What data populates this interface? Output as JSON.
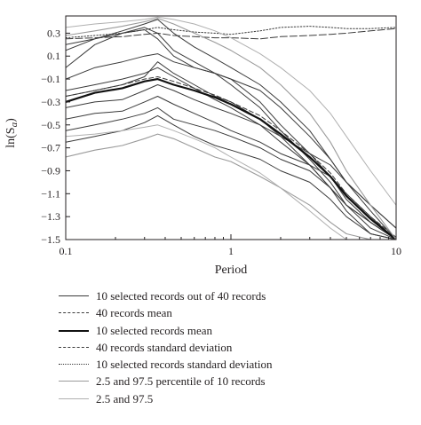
{
  "chart_data": {
    "type": "line",
    "xscale": "log",
    "xlim": [
      0.1,
      10
    ],
    "ylim": [
      -1.5,
      0.45
    ],
    "xticks": [
      0.1,
      1,
      10
    ],
    "xtick_labels": [
      "0.1",
      "1",
      "10"
    ],
    "yticks": [
      0.3,
      0.1,
      -0.1,
      -0.3,
      -0.5,
      -0.7,
      -0.9,
      -1.1,
      -1.3,
      -1.5
    ],
    "ytick_labels": [
      "0.3",
      "0.1",
      "−0.1",
      "−0.3",
      "−0.5",
      "−0.7",
      "−0.9",
      "−1.1",
      "−1.3",
      "−1.5"
    ],
    "xlabel": "Period",
    "ylabel_main": "ln(S",
    "ylabel_sub": "a",
    "ylabel_close": ")",
    "grid": false,
    "legend_position": "below",
    "colors": {
      "records": "#3a3a3a",
      "mean": "#111111",
      "gray": "#9a9a9a",
      "light": "#b0b0b0"
    },
    "legend": [
      {
        "label": "10 selected records out of 40 records",
        "style": "thin-solid"
      },
      {
        "label": "40 records mean",
        "style": "dashed"
      },
      {
        "label": "10 selected records mean",
        "style": "thick-solid"
      },
      {
        "label": "40 records standard deviation",
        "style": "long-dashed"
      },
      {
        "label": "10 selected records standard deviation",
        "style": "dotted"
      },
      {
        "label": "2.5 and 97.5 percentile of 10 records",
        "style": "gray-solid"
      },
      {
        "label": "2.5 and 97.5",
        "style": "light-solid"
      }
    ],
    "series": [
      {
        "style": "thin-solid",
        "x": [
          0.1,
          0.15,
          0.22,
          0.3,
          0.36,
          0.45,
          0.6,
          0.8,
          1,
          1.5,
          2,
          3,
          4,
          5,
          7,
          10
        ],
        "y": [
          0.15,
          0.25,
          0.32,
          0.38,
          0.42,
          0.3,
          0.18,
          0.08,
          0.0,
          -0.15,
          -0.3,
          -0.55,
          -0.8,
          -1.0,
          -1.25,
          -1.5
        ]
      },
      {
        "style": "thin-solid",
        "x": [
          0.1,
          0.15,
          0.22,
          0.3,
          0.36,
          0.45,
          0.6,
          0.8,
          1,
          1.5,
          2,
          3,
          4,
          5,
          7,
          10
        ],
        "y": [
          0.0,
          0.2,
          0.3,
          0.33,
          0.25,
          0.1,
          0.0,
          -0.05,
          -0.1,
          -0.3,
          -0.5,
          -0.75,
          -0.95,
          -1.15,
          -1.35,
          -1.5
        ]
      },
      {
        "style": "thin-solid",
        "x": [
          0.1,
          0.15,
          0.22,
          0.3,
          0.36,
          0.45,
          0.6,
          0.8,
          1,
          1.5,
          2,
          3,
          4,
          5,
          7,
          10
        ],
        "y": [
          -0.1,
          0.0,
          0.05,
          0.1,
          0.12,
          0.05,
          0.0,
          -0.05,
          -0.1,
          -0.2,
          -0.35,
          -0.6,
          -0.8,
          -1.0,
          -1.2,
          -1.4
        ]
      },
      {
        "style": "thin-solid",
        "x": [
          0.1,
          0.15,
          0.22,
          0.3,
          0.36,
          0.45,
          0.6,
          0.8,
          1,
          1.5,
          2,
          3,
          4,
          5,
          7,
          10
        ],
        "y": [
          -0.25,
          -0.2,
          -0.15,
          -0.08,
          0.05,
          -0.05,
          -0.15,
          -0.25,
          -0.3,
          -0.45,
          -0.6,
          -0.85,
          -1.05,
          -1.2,
          -1.35,
          -1.5
        ]
      },
      {
        "style": "thin-solid",
        "x": [
          0.1,
          0.15,
          0.22,
          0.3,
          0.36,
          0.45,
          0.6,
          0.8,
          1,
          1.5,
          2,
          3,
          4,
          5,
          7,
          10
        ],
        "y": [
          -0.35,
          -0.3,
          -0.28,
          -0.2,
          -0.15,
          -0.2,
          -0.28,
          -0.35,
          -0.4,
          -0.5,
          -0.6,
          -0.75,
          -0.85,
          -1.0,
          -1.2,
          -1.4
        ]
      },
      {
        "style": "thin-solid",
        "x": [
          0.1,
          0.15,
          0.22,
          0.3,
          0.36,
          0.45,
          0.6,
          0.8,
          1,
          1.5,
          2,
          3,
          4,
          5,
          7,
          10
        ],
        "y": [
          -0.45,
          -0.4,
          -0.38,
          -0.3,
          -0.25,
          -0.32,
          -0.4,
          -0.48,
          -0.55,
          -0.65,
          -0.75,
          -0.85,
          -0.95,
          -1.1,
          -1.3,
          -1.5
        ]
      },
      {
        "style": "thin-solid",
        "x": [
          0.1,
          0.15,
          0.22,
          0.3,
          0.36,
          0.45,
          0.6,
          0.8,
          1,
          1.5,
          2,
          3,
          4,
          5,
          7,
          10
        ],
        "y": [
          -0.55,
          -0.5,
          -0.45,
          -0.4,
          -0.35,
          -0.45,
          -0.5,
          -0.55,
          -0.6,
          -0.7,
          -0.8,
          -0.9,
          -1.05,
          -1.2,
          -1.35,
          -1.5
        ]
      },
      {
        "style": "thin-solid",
        "x": [
          0.1,
          0.15,
          0.22,
          0.3,
          0.36,
          0.45,
          0.6,
          0.8,
          1,
          1.5,
          2,
          3,
          4,
          5,
          7,
          10
        ],
        "y": [
          -0.65,
          -0.6,
          -0.55,
          -0.48,
          -0.42,
          -0.5,
          -0.6,
          -0.68,
          -0.72,
          -0.8,
          -0.9,
          -1.0,
          -1.15,
          -1.3,
          -1.45,
          -1.5
        ]
      },
      {
        "style": "thin-solid",
        "x": [
          0.1,
          0.15,
          0.22,
          0.3,
          0.36,
          0.45,
          0.6,
          0.8,
          1,
          1.5,
          2,
          3,
          4,
          5,
          7,
          10
        ],
        "y": [
          -0.2,
          -0.15,
          -0.1,
          -0.05,
          0.0,
          -0.08,
          -0.18,
          -0.28,
          -0.35,
          -0.5,
          -0.65,
          -0.85,
          -1.05,
          -1.25,
          -1.45,
          -1.5
        ]
      },
      {
        "style": "thin-solid",
        "x": [
          0.1,
          0.15,
          0.22,
          0.3,
          0.36,
          0.45,
          0.6,
          0.8,
          1,
          1.5,
          2,
          3,
          4,
          5,
          7,
          10
        ],
        "y": [
          0.2,
          0.25,
          0.3,
          0.35,
          0.3,
          0.15,
          0.05,
          -0.05,
          -0.15,
          -0.35,
          -0.55,
          -0.8,
          -1.0,
          -1.2,
          -1.4,
          -1.5
        ]
      },
      {
        "style": "dashed",
        "x": [
          0.1,
          0.15,
          0.22,
          0.3,
          0.36,
          0.45,
          0.6,
          0.8,
          1,
          1.5,
          2,
          3,
          4,
          5,
          7,
          10
        ],
        "y": [
          -0.25,
          -0.2,
          -0.15,
          -0.1,
          -0.08,
          -0.12,
          -0.18,
          -0.24,
          -0.3,
          -0.42,
          -0.55,
          -0.75,
          -0.92,
          -1.1,
          -1.3,
          -1.48
        ]
      },
      {
        "style": "thick-solid",
        "x": [
          0.1,
          0.15,
          0.22,
          0.3,
          0.36,
          0.45,
          0.6,
          0.8,
          1,
          1.5,
          2,
          3,
          4,
          5,
          7,
          10
        ],
        "y": [
          -0.3,
          -0.22,
          -0.18,
          -0.12,
          -0.1,
          -0.15,
          -0.2,
          -0.26,
          -0.32,
          -0.45,
          -0.58,
          -0.78,
          -0.95,
          -1.12,
          -1.32,
          -1.5
        ]
      },
      {
        "style": "long-dashed",
        "x": [
          0.1,
          0.15,
          0.22,
          0.3,
          0.36,
          0.45,
          0.6,
          0.8,
          1,
          1.5,
          2,
          3,
          4,
          5,
          7,
          10
        ],
        "y": [
          0.25,
          0.26,
          0.27,
          0.29,
          0.3,
          0.28,
          0.27,
          0.26,
          0.26,
          0.25,
          0.27,
          0.28,
          0.29,
          0.3,
          0.32,
          0.34
        ]
      },
      {
        "style": "dotted",
        "x": [
          0.1,
          0.15,
          0.22,
          0.3,
          0.36,
          0.45,
          0.6,
          0.8,
          1,
          1.5,
          2,
          3,
          4,
          5,
          7,
          10
        ],
        "y": [
          0.26,
          0.28,
          0.3,
          0.33,
          0.35,
          0.33,
          0.31,
          0.3,
          0.29,
          0.32,
          0.35,
          0.36,
          0.35,
          0.34,
          0.34,
          0.35
        ]
      },
      {
        "style": "gray-solid",
        "x": [
          0.1,
          0.15,
          0.22,
          0.3,
          0.36,
          0.45,
          0.6,
          0.8,
          1,
          1.5,
          2,
          3,
          4,
          5,
          7,
          10
        ],
        "y": [
          0.28,
          0.32,
          0.36,
          0.4,
          0.43,
          0.38,
          0.3,
          0.22,
          0.15,
          0.0,
          -0.15,
          -0.4,
          -0.65,
          -0.9,
          -1.2,
          -1.5
        ]
      },
      {
        "style": "gray-solid",
        "x": [
          0.1,
          0.15,
          0.22,
          0.3,
          0.36,
          0.45,
          0.6,
          0.8,
          1,
          1.5,
          2,
          3,
          4,
          5,
          7,
          10
        ],
        "y": [
          -0.78,
          -0.72,
          -0.68,
          -0.62,
          -0.58,
          -0.62,
          -0.7,
          -0.78,
          -0.82,
          -0.95,
          -1.05,
          -1.2,
          -1.35,
          -1.45,
          -1.5,
          -1.5
        ]
      },
      {
        "style": "light-solid",
        "x": [
          0.1,
          0.15,
          0.22,
          0.3,
          0.36,
          0.45,
          0.6,
          0.8,
          1,
          1.5,
          2,
          3,
          4,
          5,
          7,
          10
        ],
        "y": [
          0.35,
          0.38,
          0.4,
          0.42,
          0.44,
          0.42,
          0.38,
          0.32,
          0.26,
          0.12,
          0.0,
          -0.2,
          -0.4,
          -0.6,
          -0.9,
          -1.2
        ]
      },
      {
        "style": "light-solid",
        "x": [
          0.1,
          0.15,
          0.22,
          0.3,
          0.36,
          0.45,
          0.6,
          0.8,
          1,
          1.5,
          2,
          3,
          4,
          5,
          7,
          10
        ],
        "y": [
          -0.6,
          -0.58,
          -0.55,
          -0.52,
          -0.5,
          -0.55,
          -0.62,
          -0.7,
          -0.78,
          -0.92,
          -1.05,
          -1.25,
          -1.4,
          -1.5,
          -1.5,
          -1.5
        ]
      }
    ]
  }
}
